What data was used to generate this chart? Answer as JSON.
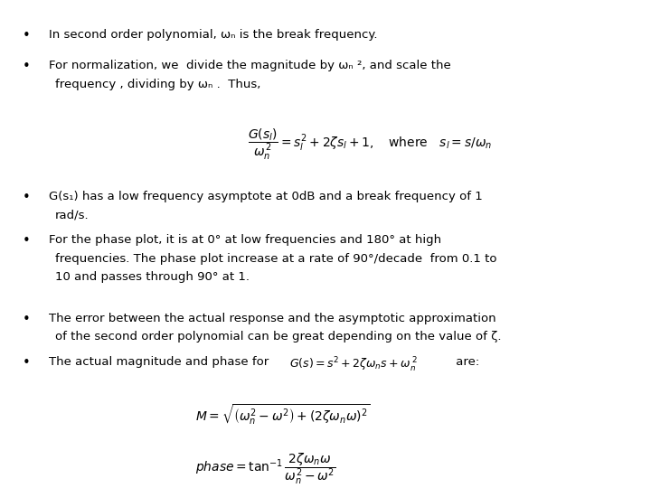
{
  "bg_color": "#ffffff",
  "text_color": "#000000",
  "font_size": 9.5,
  "bullet1": "In second order polynomial, ωₙ is the break frequency.",
  "bullet2a": "For normalization, we  divide the magnitude by ωₙ ², and scale the",
  "bullet2b": "frequency , dividing by ωₙ .  Thus,",
  "eq1": "$\\dfrac{G(s_l)}{\\omega_n^{\\,2}} = s_l^2 + 2\\zeta s_l + 1, \\quad \\mathrm{where} \\quad s_l = s/\\omega_n$",
  "bullet3a": "G(s₁) has a low frequency asymptote at 0dB and a break frequency of 1",
  "bullet3b": "rad/s.",
  "bullet4a": "For the phase plot, it is at 0° at low frequencies and 180° at high",
  "bullet4b": "frequencies. The phase plot increase at a rate of 90°/decade  from 0.1 to",
  "bullet4c": "10 and passes through 90° at 1.",
  "bullet5a": "The error between the actual response and the asymptotic approximation",
  "bullet5b": "of the second order polynomial can be great depending on the value of ζ.",
  "bullet6_pre": "The actual magnitude and phase for ",
  "bullet6_inline": "$G(s) = s^2 + 2\\zeta\\omega_n s + \\omega_n^{\\,2}$",
  "bullet6_post": " are:",
  "eq2": "$M = \\sqrt{\\left(\\omega_n^2 - \\omega^2\\right) + (2\\zeta\\omega_n\\omega)^2}$",
  "eq3": "$phase = \\tan^{-1} \\dfrac{2\\zeta\\omega_n\\omega}{\\omega_n^2 - \\omega^2}$"
}
